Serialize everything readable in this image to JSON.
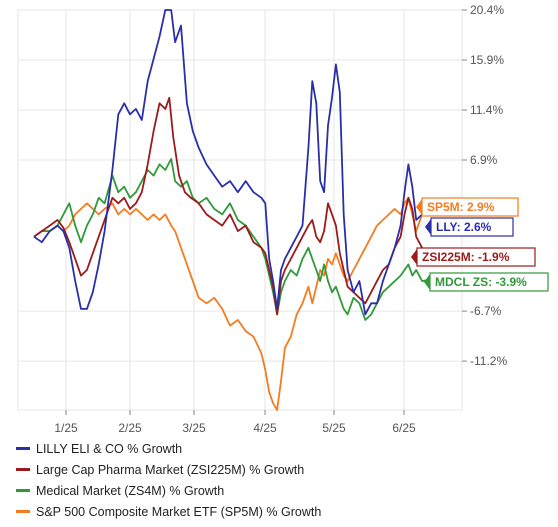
{
  "colors": {
    "lly": "#2a2fa8",
    "zsi": "#9b1b1b",
    "zs4": "#2f9a3a",
    "sp5": "#f47c20",
    "grid": "#e6e6e6",
    "axis": "#888888"
  },
  "chart_data": {
    "type": "line",
    "x_ticks": [
      "1/25",
      "2/25",
      "3/25",
      "4/25",
      "5/25",
      "6/25"
    ],
    "y_ticks": [
      "20.4%",
      "15.9%",
      "11.4%",
      "6.9%",
      "-6.7%",
      "-11.2%"
    ],
    "y_tick_values": [
      20.4,
      15.9,
      11.4,
      6.9,
      -6.7,
      -11.2
    ],
    "ylim": [
      -15.6,
      20.4
    ],
    "grid": true,
    "series": [
      {
        "key": "lly",
        "name": "LILLY ELI & CO % Growth",
        "callout": "LLY: 2.6%",
        "last": 2.6,
        "values": [
          [
            0,
            0
          ],
          [
            4,
            -0.5
          ],
          [
            8,
            0.5
          ],
          [
            12,
            1
          ],
          [
            15,
            0.5
          ],
          [
            18,
            -1
          ],
          [
            21,
            -4
          ],
          [
            24,
            -6.5
          ],
          [
            27,
            -6.5
          ],
          [
            30,
            -5
          ],
          [
            33,
            -2.5
          ],
          [
            36,
            0.5
          ],
          [
            40,
            6
          ],
          [
            43,
            11
          ],
          [
            46,
            12
          ],
          [
            49,
            11
          ],
          [
            52,
            11.5
          ],
          [
            55,
            10.5
          ],
          [
            58,
            14
          ],
          [
            61,
            16
          ],
          [
            64,
            18
          ],
          [
            67,
            20.4
          ],
          [
            70,
            20.4
          ],
          [
            72,
            17.5
          ],
          [
            75,
            19
          ],
          [
            78,
            12
          ],
          [
            81,
            9.5
          ],
          [
            84,
            8
          ],
          [
            88,
            6.5
          ],
          [
            92,
            5.5
          ],
          [
            96,
            4.5
          ],
          [
            100,
            5
          ],
          [
            104,
            4
          ],
          [
            108,
            5
          ],
          [
            112,
            4
          ],
          [
            116,
            3.5
          ],
          [
            118,
            3
          ],
          [
            120,
            -2
          ],
          [
            122,
            -4
          ],
          [
            124,
            -6.5
          ],
          [
            126,
            -3
          ],
          [
            128,
            -2
          ],
          [
            131,
            -1
          ],
          [
            134,
            0
          ],
          [
            137,
            1
          ],
          [
            140,
            8
          ],
          [
            142,
            14
          ],
          [
            144,
            12
          ],
          [
            146,
            5
          ],
          [
            148,
            4
          ],
          [
            150,
            10
          ],
          [
            152,
            12.5
          ],
          [
            154,
            15.5
          ],
          [
            156,
            13
          ],
          [
            158,
            2
          ],
          [
            160,
            -3
          ],
          [
            163,
            -5
          ],
          [
            166,
            -4
          ],
          [
            169,
            -7
          ],
          [
            172,
            -6
          ],
          [
            175,
            -6
          ],
          [
            178,
            -4
          ],
          [
            181,
            -2.5
          ],
          [
            184,
            -1
          ],
          [
            187,
            1
          ],
          [
            189,
            4
          ],
          [
            191,
            6.5
          ],
          [
            193,
            4.5
          ],
          [
            195,
            1.5
          ],
          [
            198,
            2
          ],
          [
            201,
            2.6
          ]
        ]
      },
      {
        "key": "zsi",
        "name": "Large Cap Pharma Market (ZSI225M) % Growth",
        "callout": "ZSI225M: -1.9%",
        "last": -1.9,
        "values": [
          [
            0,
            0
          ],
          [
            4,
            0.5
          ],
          [
            8,
            1
          ],
          [
            12,
            1.5
          ],
          [
            15,
            0.8
          ],
          [
            18,
            -0.5
          ],
          [
            21,
            -2
          ],
          [
            24,
            -3.5
          ],
          [
            27,
            -3
          ],
          [
            30,
            -1.5
          ],
          [
            33,
            0
          ],
          [
            36,
            1.5
          ],
          [
            40,
            3.5
          ],
          [
            43,
            3
          ],
          [
            46,
            3.5
          ],
          [
            49,
            2.5
          ],
          [
            52,
            3
          ],
          [
            55,
            4
          ],
          [
            58,
            6.5
          ],
          [
            61,
            9.5
          ],
          [
            64,
            12
          ],
          [
            67,
            11.5
          ],
          [
            69,
            12.5
          ],
          [
            71,
            9
          ],
          [
            74,
            5.5
          ],
          [
            77,
            4
          ],
          [
            80,
            3.5
          ],
          [
            84,
            3
          ],
          [
            88,
            2
          ],
          [
            92,
            1.5
          ],
          [
            96,
            1
          ],
          [
            100,
            2
          ],
          [
            104,
            0.5
          ],
          [
            108,
            1
          ],
          [
            112,
            -0.5
          ],
          [
            116,
            -1
          ],
          [
            118,
            -1.5
          ],
          [
            120,
            -3
          ],
          [
            122,
            -4.5
          ],
          [
            124,
            -7
          ],
          [
            126,
            -4
          ],
          [
            128,
            -3
          ],
          [
            131,
            -2
          ],
          [
            134,
            -1
          ],
          [
            137,
            0
          ],
          [
            140,
            1
          ],
          [
            142,
            1.5
          ],
          [
            144,
            0
          ],
          [
            146,
            -0.5
          ],
          [
            148,
            0.5
          ],
          [
            150,
            3
          ],
          [
            152,
            2
          ],
          [
            154,
            1
          ],
          [
            156,
            -1.5
          ],
          [
            158,
            -3
          ],
          [
            160,
            -4.5
          ],
          [
            163,
            -5
          ],
          [
            166,
            -5.5
          ],
          [
            169,
            -6
          ],
          [
            172,
            -5
          ],
          [
            175,
            -4
          ],
          [
            178,
            -3
          ],
          [
            181,
            -2.5
          ],
          [
            184,
            -1
          ],
          [
            187,
            0
          ],
          [
            189,
            2
          ],
          [
            191,
            3.5
          ],
          [
            193,
            2.5
          ],
          [
            195,
            0
          ],
          [
            198,
            -1
          ],
          [
            201,
            -1.9
          ]
        ]
      },
      {
        "key": "zs4",
        "name": "Medical Market (ZS4M) % Growth",
        "callout": "MDCL ZS: -3.9%",
        "last": -3.9,
        "values": [
          [
            0,
            0
          ],
          [
            4,
            0.5
          ],
          [
            8,
            0.5
          ],
          [
            12,
            1
          ],
          [
            15,
            2
          ],
          [
            18,
            3
          ],
          [
            21,
            1
          ],
          [
            24,
            -0.5
          ],
          [
            27,
            1
          ],
          [
            30,
            2
          ],
          [
            33,
            3.5
          ],
          [
            36,
            3
          ],
          [
            40,
            5.5
          ],
          [
            43,
            4
          ],
          [
            46,
            4.5
          ],
          [
            49,
            3.5
          ],
          [
            52,
            4
          ],
          [
            55,
            5
          ],
          [
            58,
            6
          ],
          [
            61,
            5.5
          ],
          [
            64,
            6.5
          ],
          [
            67,
            6
          ],
          [
            70,
            7
          ],
          [
            72,
            5
          ],
          [
            75,
            4.5
          ],
          [
            78,
            5
          ],
          [
            81,
            3.5
          ],
          [
            84,
            3
          ],
          [
            88,
            3.5
          ],
          [
            92,
            2.5
          ],
          [
            96,
            2
          ],
          [
            100,
            3
          ],
          [
            104,
            1.5
          ],
          [
            108,
            1
          ],
          [
            112,
            0
          ],
          [
            116,
            -1
          ],
          [
            118,
            -2
          ],
          [
            120,
            -3.5
          ],
          [
            122,
            -5
          ],
          [
            124,
            -7
          ],
          [
            126,
            -5
          ],
          [
            128,
            -4
          ],
          [
            131,
            -3
          ],
          [
            134,
            -3.5
          ],
          [
            137,
            -2
          ],
          [
            140,
            -1
          ],
          [
            142,
            -2
          ],
          [
            144,
            -3
          ],
          [
            146,
            -4
          ],
          [
            148,
            -2.5
          ],
          [
            150,
            -4
          ],
          [
            152,
            -5
          ],
          [
            154,
            -4.5
          ],
          [
            156,
            -5.5
          ],
          [
            158,
            -6.5
          ],
          [
            160,
            -7
          ],
          [
            163,
            -5.5
          ],
          [
            166,
            -6
          ],
          [
            169,
            -7.5
          ],
          [
            172,
            -7
          ],
          [
            175,
            -6
          ],
          [
            178,
            -5
          ],
          [
            181,
            -4.5
          ],
          [
            184,
            -4
          ],
          [
            187,
            -3.5
          ],
          [
            189,
            -3
          ],
          [
            191,
            -2.5
          ],
          [
            193,
            -3.5
          ],
          [
            195,
            -3
          ],
          [
            198,
            -4
          ],
          [
            201,
            -3.9
          ]
        ]
      },
      {
        "key": "sp5",
        "name": "S&P 500 Composite Market ETF (SP5M) % Growth",
        "callout": "SP5M: 2.9%",
        "last": 2.9,
        "values": [
          [
            0,
            0
          ],
          [
            4,
            0.5
          ],
          [
            8,
            0.5
          ],
          [
            12,
            1
          ],
          [
            15,
            0.5
          ],
          [
            18,
            1
          ],
          [
            21,
            2
          ],
          [
            24,
            2.5
          ],
          [
            27,
            3
          ],
          [
            30,
            2.5
          ],
          [
            33,
            2
          ],
          [
            36,
            2.5
          ],
          [
            40,
            3
          ],
          [
            43,
            2
          ],
          [
            46,
            2.5
          ],
          [
            49,
            2
          ],
          [
            52,
            2.5
          ],
          [
            55,
            2
          ],
          [
            58,
            1.5
          ],
          [
            61,
            2
          ],
          [
            64,
            1.5
          ],
          [
            67,
            2
          ],
          [
            70,
            1
          ],
          [
            72,
            0.5
          ],
          [
            75,
            -1
          ],
          [
            78,
            -2.5
          ],
          [
            81,
            -4
          ],
          [
            84,
            -5.5
          ],
          [
            88,
            -6
          ],
          [
            92,
            -5.5
          ],
          [
            96,
            -6.5
          ],
          [
            100,
            -8
          ],
          [
            104,
            -7.5
          ],
          [
            108,
            -8.5
          ],
          [
            112,
            -9
          ],
          [
            116,
            -10.5
          ],
          [
            118,
            -12
          ],
          [
            120,
            -14
          ],
          [
            122,
            -15
          ],
          [
            124,
            -15.6
          ],
          [
            126,
            -13
          ],
          [
            128,
            -10
          ],
          [
            131,
            -9
          ],
          [
            134,
            -7
          ],
          [
            137,
            -6
          ],
          [
            140,
            -4.5
          ],
          [
            142,
            -6
          ],
          [
            144,
            -4.5
          ],
          [
            146,
            -3
          ],
          [
            148,
            -3.5
          ],
          [
            150,
            -2
          ],
          [
            152,
            -2.5
          ],
          [
            154,
            -1.5
          ],
          [
            156,
            -2.5
          ],
          [
            158,
            -3.5
          ],
          [
            160,
            -4
          ],
          [
            163,
            -3
          ],
          [
            166,
            -2
          ],
          [
            169,
            -1
          ],
          [
            172,
            0
          ],
          [
            175,
            1
          ],
          [
            178,
            1.5
          ],
          [
            181,
            2
          ],
          [
            184,
            2.5
          ],
          [
            187,
            2
          ],
          [
            189,
            3
          ],
          [
            191,
            3.5
          ],
          [
            193,
            2
          ],
          [
            195,
            0.5
          ],
          [
            198,
            2
          ],
          [
            201,
            2.9
          ]
        ]
      }
    ]
  }
}
